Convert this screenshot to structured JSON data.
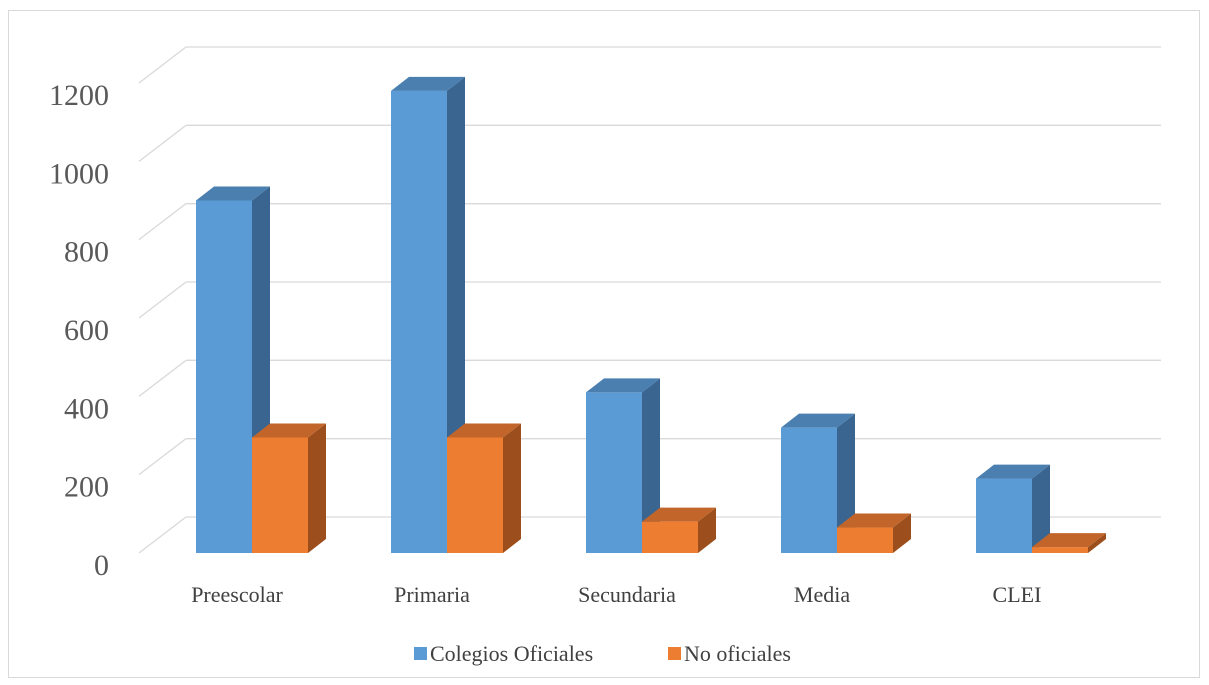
{
  "chart_data": {
    "type": "bar",
    "categories": [
      "Preescolar",
      "Primaria",
      "Secundaria",
      "Media",
      "CLEI"
    ],
    "series": [
      {
        "name": "Colegios Oficiales",
        "values": [
          900,
          1180,
          410,
          320,
          190
        ],
        "color": "#5b9bd5",
        "side_color": "#3a6590",
        "top_color": "#4a7fb0"
      },
      {
        "name": "No oficiales",
        "values": [
          295,
          295,
          80,
          65,
          15
        ],
        "color": "#ed7d31",
        "side_color": "#9c4f1c",
        "top_color": "#c2652a"
      }
    ],
    "y_ticks": [
      "0",
      "200",
      "400",
      "600",
      "800",
      "1000",
      "1200"
    ],
    "ylim": [
      0,
      1200
    ],
    "grid": true,
    "legend_position": "bottom"
  }
}
